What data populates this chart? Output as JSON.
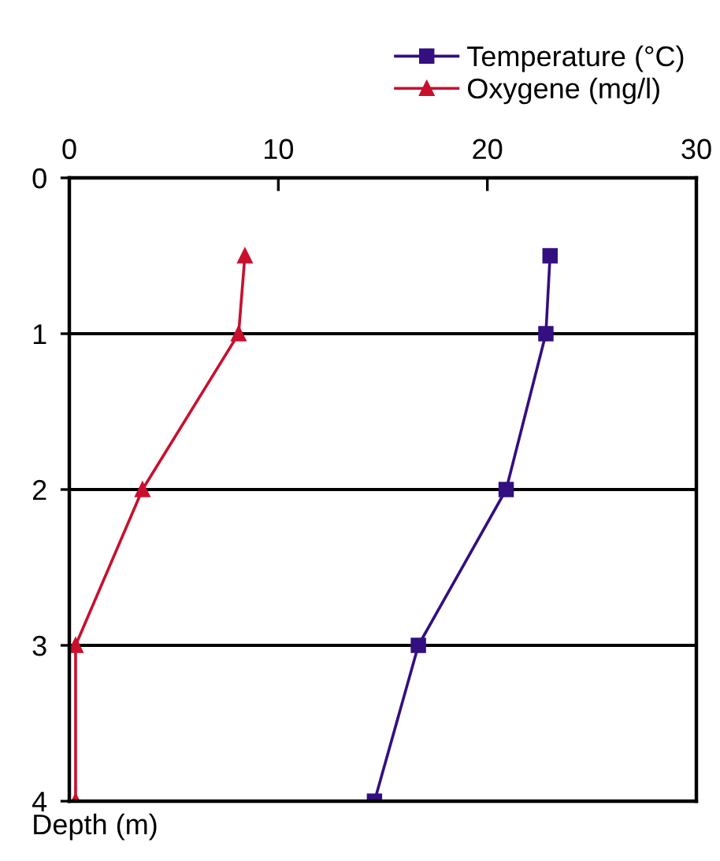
{
  "chart_data": {
    "type": "line",
    "ylabel": "Depth (m)",
    "series": [
      {
        "name": "Temperature (°C)",
        "color": "#330f80",
        "marker": "square",
        "x": [
          23.0,
          22.8,
          20.9,
          16.7,
          14.6
        ],
        "values": [
          0.5,
          1,
          2,
          3,
          4
        ]
      },
      {
        "name": "Oxygene (mg/l)",
        "color": "#c8102e",
        "marker": "triangle",
        "x": [
          8.4,
          8.1,
          3.5,
          0.3,
          0.3
        ],
        "values": [
          0.5,
          1,
          2,
          3,
          4
        ]
      }
    ],
    "xlim": [
      0,
      30
    ],
    "xticks": [
      0,
      10,
      20,
      30
    ],
    "ylim": [
      4,
      0
    ],
    "yticks": [
      0,
      1,
      2,
      3,
      4
    ],
    "grid": "y",
    "legend": "top right",
    "line_style": "solid"
  }
}
